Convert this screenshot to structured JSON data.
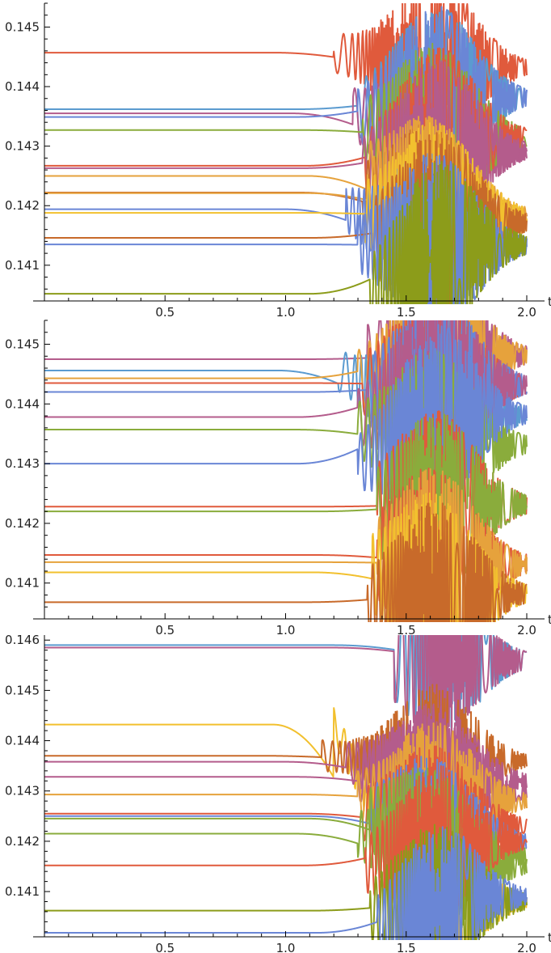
{
  "colors": [
    "#e05a3c",
    "#5b9bd0",
    "#8aac3c",
    "#b45c8c",
    "#e6a23c",
    "#f2c02e",
    "#6a86d6",
    "#c86a2a",
    "#8c9c1a"
  ],
  "chart_data": [
    {
      "type": "line",
      "xlabel": "t",
      "ylabel": "",
      "xlim": [
        0,
        2.0
      ],
      "ylim": [
        0.1404,
        0.1454
      ],
      "x_ticks": [
        0.5,
        1.0,
        1.5,
        2.0
      ],
      "x_tick_labels": [
        "0.5",
        "1.0",
        "1.5",
        "2.0"
      ],
      "y_ticks": [
        0.141,
        0.142,
        0.143,
        0.144,
        0.145
      ],
      "y_tick_labels": [
        "0.141",
        "0.142",
        "0.143",
        "0.144",
        "0.145"
      ],
      "series": [
        {
          "color": "#e05a3c",
          "start": 0.14457,
          "end": 0.14432,
          "t_break": 1.2
        },
        {
          "color": "#5b9bd0",
          "start": 0.14362,
          "end": 0.14382,
          "t_break": 1.3
        },
        {
          "color": "#b45c8c",
          "start": 0.14355,
          "end": 0.14292,
          "t_break": 1.28
        },
        {
          "color": "#6a86d6",
          "start": 0.14349,
          "end": 0.14382,
          "t_break": 1.3
        },
        {
          "color": "#8aac3c",
          "start": 0.14327,
          "end": 0.14315,
          "t_break": 1.32
        },
        {
          "color": "#e05a3c",
          "start": 0.14267,
          "end": 0.14315,
          "t_break": 1.33
        },
        {
          "color": "#b45c8c",
          "start": 0.14263,
          "end": 0.14292,
          "t_break": 1.32
        },
        {
          "color": "#e6a23c",
          "start": 0.1425,
          "end": 0.14172,
          "t_break": 1.34
        },
        {
          "color": "#c86a2a",
          "start": 0.14222,
          "end": 0.14172,
          "t_break": 1.32
        },
        {
          "color": "#e6a23c",
          "start": 0.14221,
          "end": 0.14182,
          "t_break": 1.34
        },
        {
          "color": "#6a86d6",
          "start": 0.14194,
          "end": 0.14133,
          "t_break": 1.25
        },
        {
          "color": "#f2c02e",
          "start": 0.14188,
          "end": 0.14182,
          "t_break": 1.33
        },
        {
          "color": "#c86a2a",
          "start": 0.14146,
          "end": 0.14172,
          "t_break": 1.36
        },
        {
          "color": "#6a86d6",
          "start": 0.14135,
          "end": 0.14133,
          "t_break": 1.3
        },
        {
          "color": "#8c9c1a",
          "start": 0.14052,
          "end": 0.14133,
          "t_break": 1.35
        }
      ]
    },
    {
      "type": "line",
      "xlabel": "t",
      "ylabel": "",
      "xlim": [
        0,
        2.0
      ],
      "ylim": [
        0.1404,
        0.1454
      ],
      "x_ticks": [
        0.5,
        1.0,
        1.5,
        2.0
      ],
      "x_tick_labels": [
        "0.5",
        "1.0",
        "1.5",
        "2.0"
      ],
      "y_ticks": [
        0.141,
        0.142,
        0.143,
        0.144,
        0.145
      ],
      "y_tick_labels": [
        "0.141",
        "0.142",
        "0.143",
        "0.144",
        "0.145"
      ],
      "series": [
        {
          "color": "#b45c8c",
          "start": 0.14475,
          "end": 0.14482,
          "t_break": 1.34
        },
        {
          "color": "#5b9bd0",
          "start": 0.14456,
          "end": 0.14382,
          "t_break": 1.22
        },
        {
          "color": "#e6a23c",
          "start": 0.14443,
          "end": 0.14482,
          "t_break": 1.3
        },
        {
          "color": "#e05a3c",
          "start": 0.14435,
          "end": 0.14432,
          "t_break": 1.32
        },
        {
          "color": "#6a86d6",
          "start": 0.1442,
          "end": 0.14432,
          "t_break": 1.34
        },
        {
          "color": "#b45c8c",
          "start": 0.14378,
          "end": 0.14432,
          "t_break": 1.3
        },
        {
          "color": "#8aac3c",
          "start": 0.14357,
          "end": 0.14332,
          "t_break": 1.3
        },
        {
          "color": "#6a86d6",
          "start": 0.143,
          "end": 0.14382,
          "t_break": 1.3
        },
        {
          "color": "#e05a3c",
          "start": 0.14228,
          "end": 0.14232,
          "t_break": 1.38
        },
        {
          "color": "#8aac3c",
          "start": 0.1422,
          "end": 0.14232,
          "t_break": 1.38
        },
        {
          "color": "#e05a3c",
          "start": 0.14147,
          "end": 0.14132,
          "t_break": 1.38
        },
        {
          "color": "#e6a23c",
          "start": 0.14135,
          "end": 0.14132,
          "t_break": 1.38
        },
        {
          "color": "#f2c02e",
          "start": 0.14118,
          "end": 0.14082,
          "t_break": 1.36
        },
        {
          "color": "#c86a2a",
          "start": 0.14068,
          "end": 0.14082,
          "t_break": 1.34
        }
      ]
    },
    {
      "type": "line",
      "xlabel": "t",
      "ylabel": "",
      "xlim": [
        0,
        2.0
      ],
      "ylim": [
        0.1401,
        0.1461
      ],
      "x_ticks": [
        0.5,
        1.0,
        1.5,
        2.0
      ],
      "x_tick_labels": [
        "0.5",
        "1.0",
        "1.5",
        "2.0"
      ],
      "y_ticks": [
        0.141,
        0.142,
        0.143,
        0.144,
        0.145,
        0.146
      ],
      "y_tick_labels": [
        "0.141",
        "0.142",
        "0.143",
        "0.144",
        "0.145",
        "0.146"
      ],
      "series": [
        {
          "color": "#5b9bd0",
          "start": 0.1459,
          "end": 0.1456,
          "t_break": 1.45
        },
        {
          "color": "#b45c8c",
          "start": 0.14585,
          "end": 0.1456,
          "t_break": 1.45
        },
        {
          "color": "#f2c02e",
          "start": 0.14432,
          "end": 0.1408,
          "t_break": 1.2
        },
        {
          "color": "#c86a2a",
          "start": 0.1437,
          "end": 0.1436,
          "t_break": 1.15
        },
        {
          "color": "#b45c8c",
          "start": 0.14358,
          "end": 0.1432,
          "t_break": 1.25
        },
        {
          "color": "#b45c8c",
          "start": 0.14328,
          "end": 0.143,
          "t_break": 1.3
        },
        {
          "color": "#e6a23c",
          "start": 0.14293,
          "end": 0.1428,
          "t_break": 1.3
        },
        {
          "color": "#e05a3c",
          "start": 0.14255,
          "end": 0.1423,
          "t_break": 1.32
        },
        {
          "color": "#6a86d6",
          "start": 0.1425,
          "end": 0.142,
          "t_break": 1.35
        },
        {
          "color": "#8aac3c",
          "start": 0.14245,
          "end": 0.1417,
          "t_break": 1.35
        },
        {
          "color": "#8aac3c",
          "start": 0.14215,
          "end": 0.1415,
          "t_break": 1.3
        },
        {
          "color": "#e05a3c",
          "start": 0.14152,
          "end": 0.142,
          "t_break": 1.33
        },
        {
          "color": "#8c9c1a",
          "start": 0.14062,
          "end": 0.1408,
          "t_break": 1.35
        },
        {
          "color": "#6a86d6",
          "start": 0.14018,
          "end": 0.1409,
          "t_break": 1.38
        }
      ]
    }
  ]
}
